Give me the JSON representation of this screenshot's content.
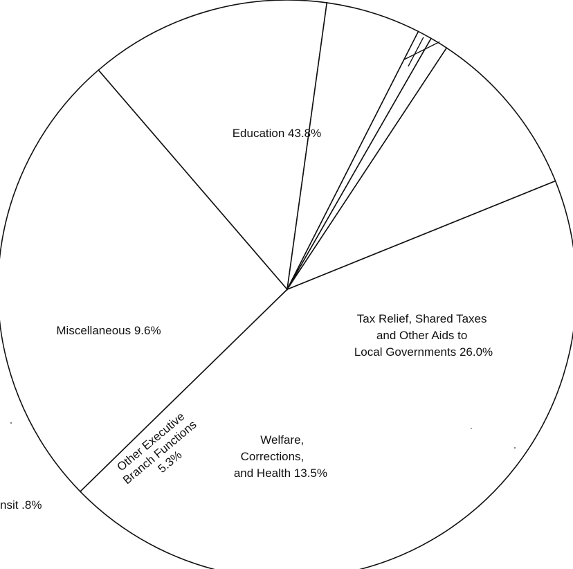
{
  "chart_data": {
    "type": "pie",
    "slices": [
      {
        "key": "education",
        "value": 43.8,
        "lines": [
          "Education  43.8%"
        ]
      },
      {
        "key": "tax-relief",
        "value": 26.0,
        "lines": [
          "Tax Relief, Shared Taxes",
          "and Other Aids to",
          "Local Governments  26.0%"
        ]
      },
      {
        "key": "welfare",
        "value": 13.5,
        "lines": [
          "Welfare,",
          "Corrections,",
          "and Health  13.5%"
        ]
      },
      {
        "key": "other-executive",
        "value": 5.3,
        "lines": [
          "Other Executive",
          "Branch Functions",
          "5.3%"
        ]
      },
      {
        "key": "transit",
        "value": 0.8,
        "lines": [
          "nsit  .8%"
        ]
      },
      {
        "key": "cut-off-slice",
        "value": 1.0,
        "lines": [
          ""
        ]
      },
      {
        "key": "miscellaneous",
        "value": 9.6,
        "lines": [
          "Miscellaneous  9.6%"
        ]
      }
    ],
    "title": "",
    "legend": "none"
  }
}
